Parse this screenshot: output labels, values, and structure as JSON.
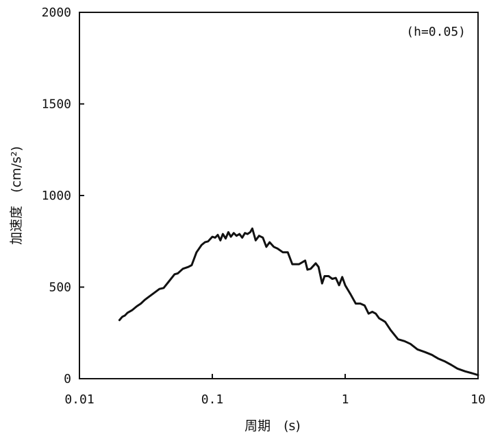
{
  "chart_data": {
    "type": "line",
    "title": "",
    "annotation": "(h=0.05)",
    "xlabel": "周期　(s)",
    "ylabel": "加速度　(cm/s²)",
    "xscale": "log",
    "xlim": [
      0.01,
      10
    ],
    "ylim": [
      0,
      2000
    ],
    "xticks": [
      0.01,
      0.1,
      1,
      10
    ],
    "xtick_labels": [
      "0.01",
      "0.1",
      "1",
      "10"
    ],
    "yticks": [
      0,
      500,
      1000,
      1500,
      2000
    ],
    "ytick_labels": [
      "0",
      "500",
      "1000",
      "1500",
      "2000"
    ],
    "grid": false,
    "legend": "none",
    "line_color": "#111111",
    "series": [
      {
        "x": [
          0.02,
          0.021,
          0.022,
          0.023,
          0.025,
          0.027,
          0.029,
          0.031,
          0.033,
          0.036,
          0.04,
          0.043,
          0.047,
          0.052,
          0.055,
          0.06,
          0.066,
          0.07,
          0.076,
          0.083,
          0.088,
          0.093,
          0.1,
          0.105,
          0.11,
          0.115,
          0.12,
          0.126,
          0.132,
          0.138,
          0.145,
          0.152,
          0.16,
          0.168,
          0.176,
          0.184,
          0.193,
          0.2,
          0.212,
          0.225,
          0.24,
          0.255,
          0.27,
          0.29,
          0.31,
          0.34,
          0.37,
          0.4,
          0.45,
          0.5,
          0.52,
          0.55,
          0.6,
          0.63,
          0.67,
          0.7,
          0.75,
          0.8,
          0.85,
          0.9,
          0.95,
          1.0,
          1.1,
          1.2,
          1.3,
          1.4,
          1.5,
          1.6,
          1.7,
          1.8,
          1.9,
          2.0,
          2.2,
          2.5,
          2.8,
          3.1,
          3.5,
          4.0,
          4.5,
          5.0,
          5.6,
          6.3,
          7.0,
          8.0,
          9.0,
          10.0
        ],
        "y": [
          320,
          338,
          345,
          360,
          375,
          395,
          410,
          430,
          445,
          465,
          490,
          495,
          530,
          570,
          575,
          600,
          610,
          620,
          690,
          730,
          745,
          750,
          775,
          770,
          785,
          755,
          790,
          765,
          800,
          775,
          795,
          780,
          790,
          770,
          795,
          790,
          800,
          820,
          755,
          780,
          770,
          720,
          745,
          720,
          710,
          690,
          690,
          625,
          625,
          645,
          595,
          600,
          630,
          610,
          520,
          560,
          560,
          545,
          550,
          510,
          555,
          510,
          460,
          410,
          410,
          400,
          355,
          365,
          355,
          330,
          320,
          310,
          265,
          215,
          205,
          190,
          160,
          145,
          130,
          110,
          95,
          75,
          55,
          40,
          30,
          20
        ]
      }
    ]
  }
}
